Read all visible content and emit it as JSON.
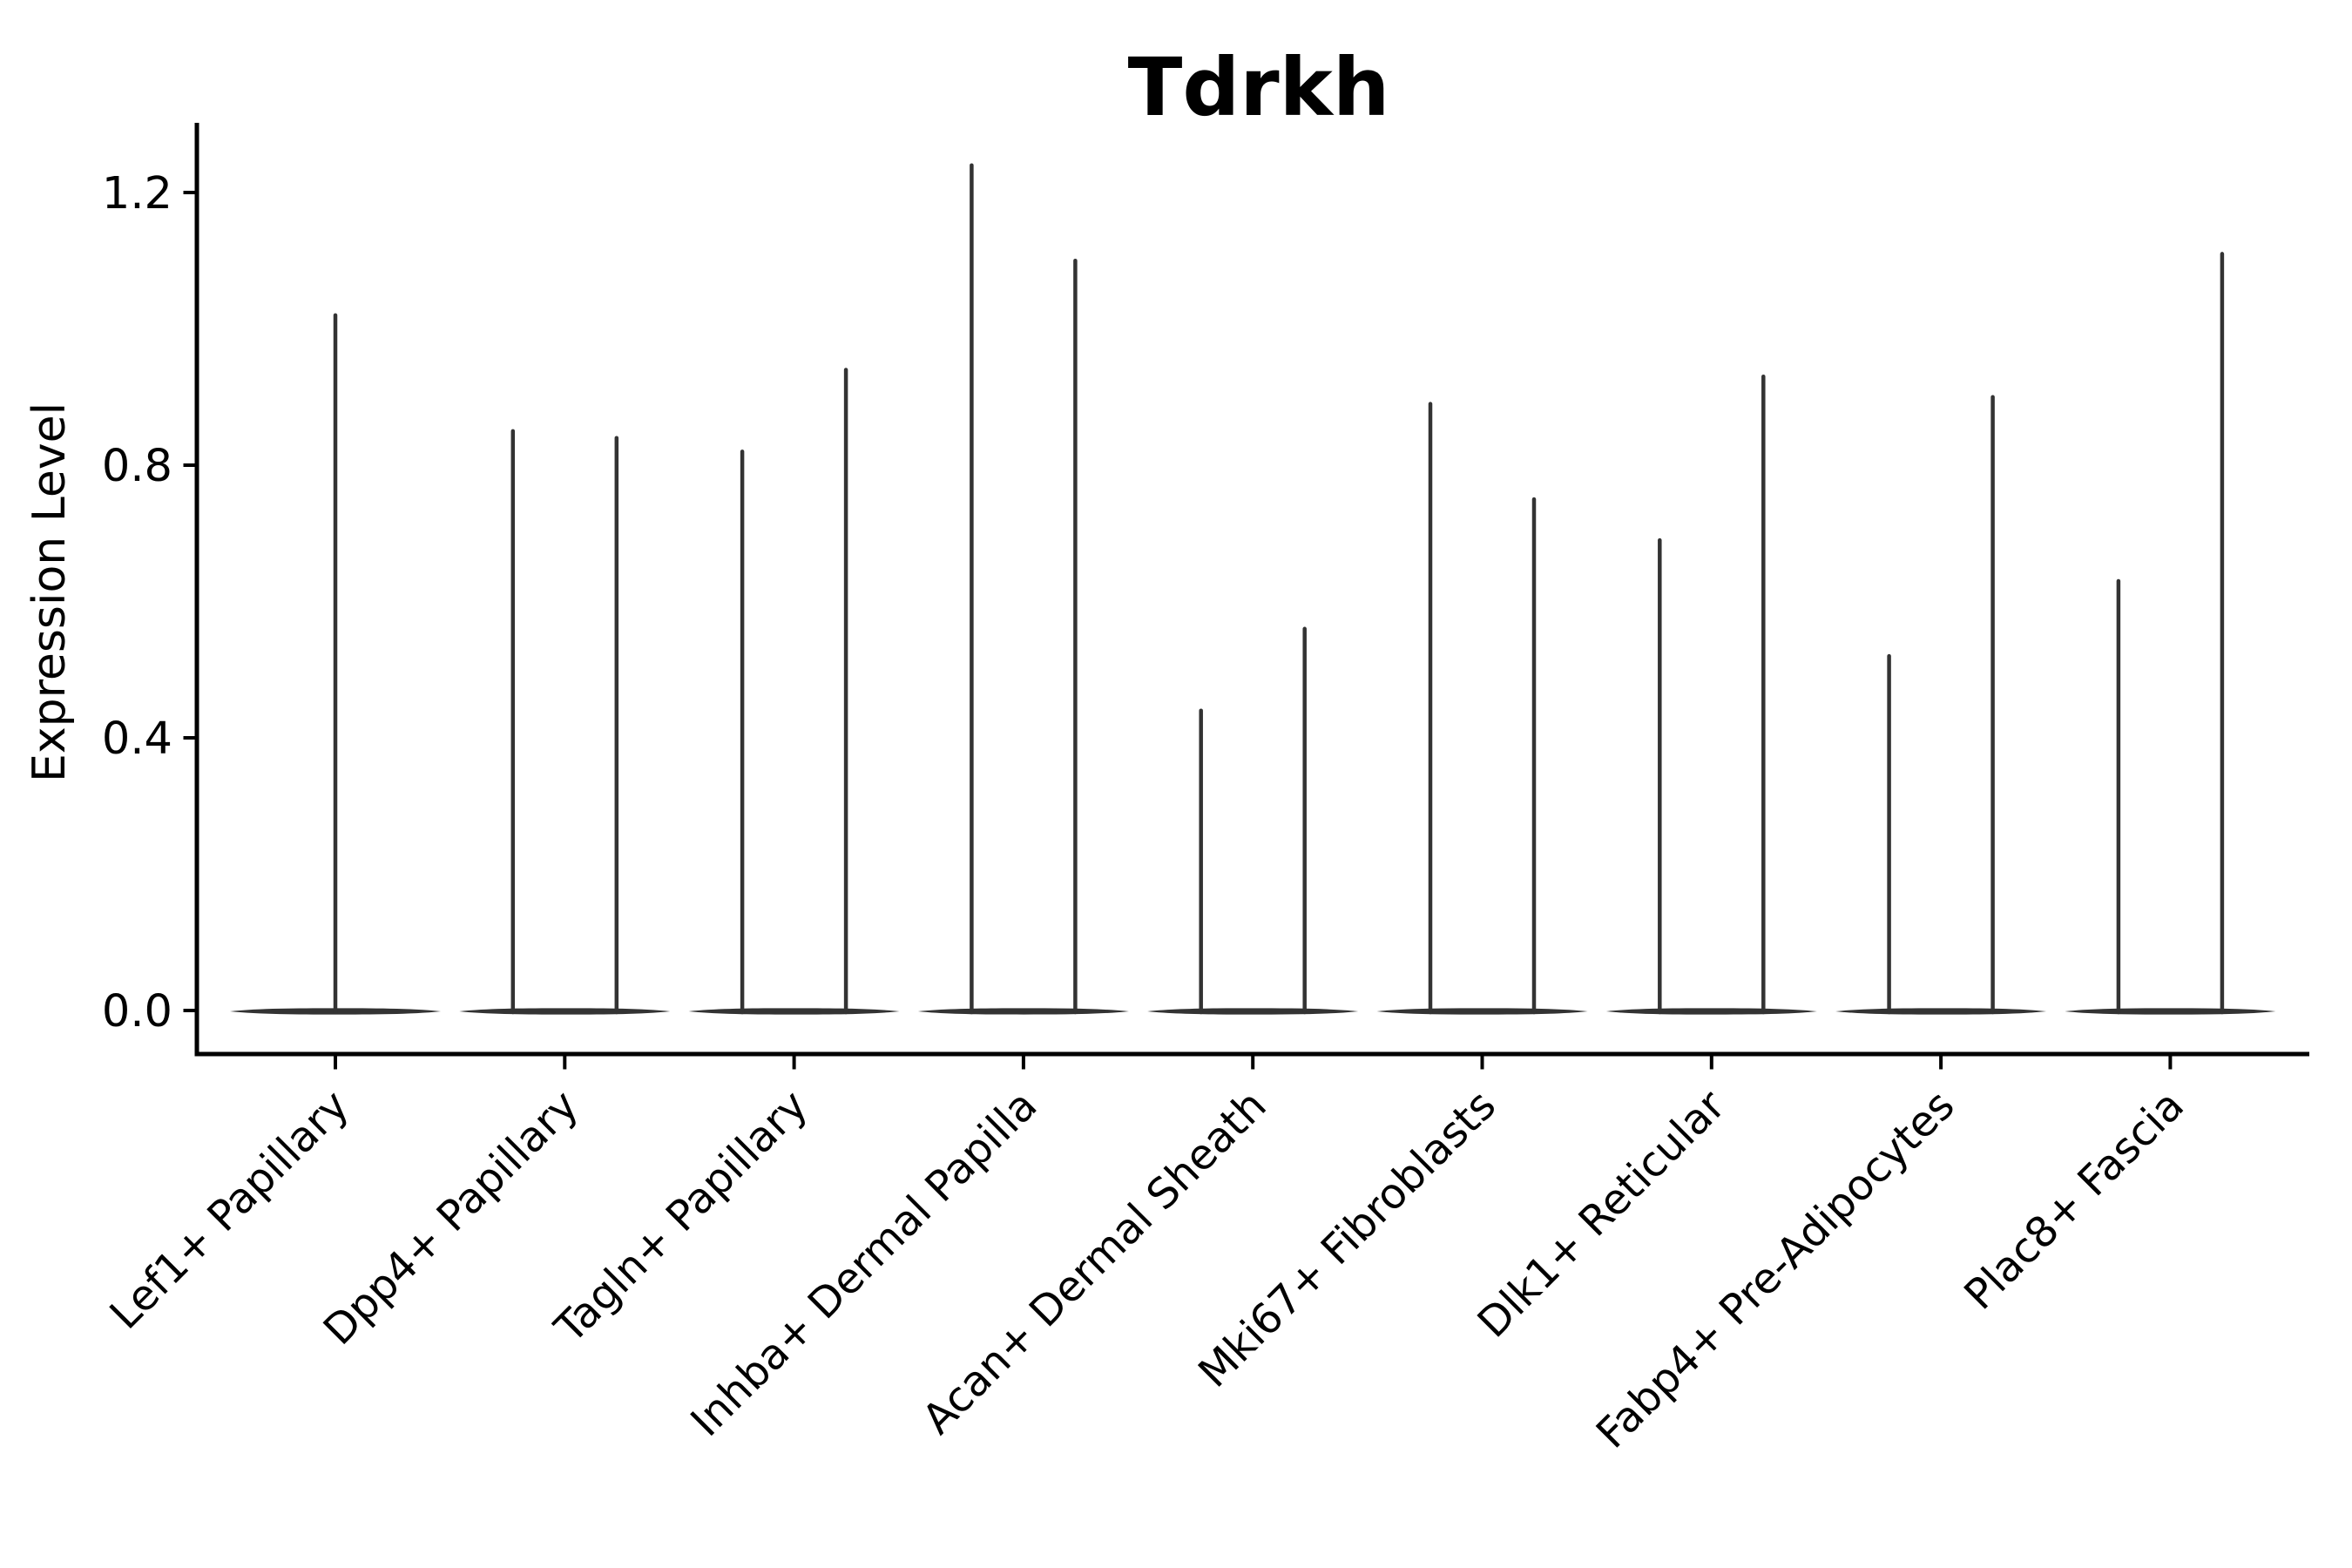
{
  "chart_data": {
    "type": "violin",
    "title": "Tdrkh",
    "ylabel": "Expression Level",
    "xlabel": "",
    "ytick_labels": [
      "0.0",
      "0.4",
      "0.8",
      "1.2"
    ],
    "yticks": [
      0.0,
      0.4,
      0.8,
      1.2
    ],
    "ylim": [
      -0.065,
      1.3
    ],
    "grid": false,
    "legend_position": "none",
    "description": "Violin plot of gene expression; each violin is a wide flat body at 0 with a thin spike rising to the maximum expression value. Categories 2-9 each contain two sub-violins.",
    "baseline_value": 0.0,
    "categories": [
      "Lef1+ Papillary",
      "Dpp4+ Papillary",
      "Tagln+ Papillary",
      "Inhba+ Dermal Papilla",
      "Acan+ Dermal Sheath",
      "Mki67+ Fibroblasts",
      "Dlk1+ Reticular",
      "Fabp4+ Pre-Adipocytes",
      "Plac8+ Fascia"
    ],
    "series": [
      {
        "category": "Lef1+ Papillary",
        "spike_max_values": [
          1.02
        ]
      },
      {
        "category": "Dpp4+ Papillary",
        "spike_max_values": [
          0.85,
          0.84
        ]
      },
      {
        "category": "Tagln+ Papillary",
        "spike_max_values": [
          0.82,
          0.94
        ]
      },
      {
        "category": "Inhba+ Dermal Papilla",
        "spike_max_values": [
          1.24,
          1.1
        ]
      },
      {
        "category": "Acan+ Dermal Sheath",
        "spike_max_values": [
          0.44,
          0.56
        ]
      },
      {
        "category": "Mki67+ Fibroblasts",
        "spike_max_values": [
          0.89,
          0.75
        ]
      },
      {
        "category": "Dlk1+ Reticular",
        "spike_max_values": [
          0.69,
          0.93
        ]
      },
      {
        "category": "Fabp4+ Pre-Adipocytes",
        "spike_max_values": [
          0.52,
          0.9
        ]
      },
      {
        "category": "Plac8+ Fascia",
        "spike_max_values": [
          0.63,
          1.11
        ]
      }
    ],
    "colors": {
      "violin": "#333333",
      "axis": "#000000",
      "text": "#000000",
      "background": "#ffffff"
    }
  }
}
